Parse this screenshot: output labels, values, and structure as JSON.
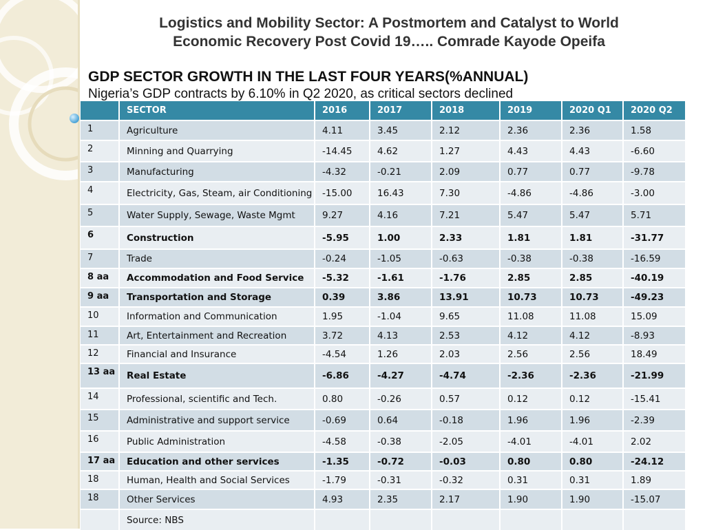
{
  "slide": {
    "title_line1": "Logistics and Mobility Sector: A Postmortem and Catalyst to World",
    "title_line2": "Economic Recovery Post Covid 19….. Comrade Kayode Opeifa",
    "heading": "GDP SECTOR GROWTH IN THE LAST FOUR YEARS(%ANNUAL)",
    "subheading": "Nigeria’s GDP contracts by 6.10% in Q2 2020, as critical sectors declined"
  },
  "table": {
    "headers": [
      "",
      "SECTOR",
      "2016",
      "2017",
      "2018",
      "2019",
      "2020 Q1",
      "2020 Q2"
    ],
    "rows": [
      {
        "num": "1",
        "sector": "Agriculture",
        "v": [
          "4.11",
          "3.45",
          "2.12",
          "2.36",
          "2.36",
          "1.58"
        ],
        "bold": false
      },
      {
        "num": "2",
        "sector": "Minning and Quarrying",
        "v": [
          "-14.45",
          "4.62",
          "1.27",
          "4.43",
          "4.43",
          "-6.60"
        ],
        "bold": false
      },
      {
        "num": "3",
        "sector": "Manufacturing",
        "v": [
          "-4.32",
          "-0.21",
          "2.09",
          "0.77",
          "0.77",
          "-9.78"
        ],
        "bold": false
      },
      {
        "num": "4",
        "sector": "Electricity, Gas, Steam, air Conditioning",
        "v": [
          "-15.00",
          "16.43",
          "7.30",
          "-4.86",
          "-4.86",
          "-3.00"
        ],
        "bold": false
      },
      {
        "num": "5",
        "sector": "Water Supply, Sewage, Waste Mgmt",
        "v": [
          "9.27",
          "4.16",
          "7.21",
          "5.47",
          "5.47",
          "5.71"
        ],
        "bold": false
      },
      {
        "num": "6",
        "sector": "Construction",
        "v": [
          "-5.95",
          "1.00",
          "2.33",
          "1.81",
          "1.81",
          "-31.77"
        ],
        "bold": true
      },
      {
        "num": "7",
        "sector": "Trade",
        "v": [
          "-0.24",
          "-1.05",
          "-0.63",
          "-0.38",
          "-0.38",
          "-16.59"
        ],
        "bold": false
      },
      {
        "num": "8 aa",
        "sector": "Accommodation and Food Service",
        "v": [
          "-5.32",
          "-1.61",
          "-1.76",
          "2.85",
          "2.85",
          "-40.19"
        ],
        "bold": true
      },
      {
        "num": "9 aa",
        "sector": "Transportation and Storage",
        "v": [
          "0.39",
          "3.86",
          "13.91",
          "10.73",
          "10.73",
          "-49.23"
        ],
        "bold": true
      },
      {
        "num": "10",
        "sector": "Information and Communication",
        "v": [
          "1.95",
          "-1.04",
          "9.65",
          "11.08",
          "11.08",
          "15.09"
        ],
        "bold": false
      },
      {
        "num": "11",
        "sector": "Art, Entertainment and Recreation",
        "v": [
          "3.72",
          "4.13",
          "2.53",
          "4.12",
          "4.12",
          "-8.93"
        ],
        "bold": false
      },
      {
        "num": "12",
        "sector": "Financial and Insurance",
        "v": [
          "-4.54",
          "1.26",
          "2.03",
          "2.56",
          "2.56",
          "18.49"
        ],
        "bold": false
      },
      {
        "num": "13 aa",
        "sector": "Real Estate",
        "v": [
          "-6.86",
          "-4.27",
          "-4.74",
          "-2.36",
          "-2.36",
          "-21.99"
        ],
        "bold": true
      },
      {
        "num": "14",
        "sector": "Professional, scientific and Tech.",
        "v": [
          "0.80",
          "-0.26",
          "0.57",
          "0.12",
          "0.12",
          "-15.41"
        ],
        "bold": false
      },
      {
        "num": "15",
        "sector": "Administrative and support service",
        "v": [
          "-0.69",
          "0.64",
          "-0.18",
          "1.96",
          "1.96",
          "-2.39"
        ],
        "bold": false
      },
      {
        "num": "16",
        "sector": "Public Administration",
        "v": [
          "-4.58",
          "-0.38",
          "-2.05",
          "-4.01",
          "-4.01",
          "2.02"
        ],
        "bold": false
      },
      {
        "num": "17 aa",
        "sector": "Education and other services",
        "v": [
          "-1.35",
          "-0.72",
          "-0.03",
          "0.80",
          "0.80",
          "-24.12"
        ],
        "bold": true
      },
      {
        "num": "18",
        "sector": "Human, Health and Social Services",
        "v": [
          "-1.79",
          "-0.31",
          "-0.32",
          "0.31",
          "0.31",
          "1.89"
        ],
        "bold": false
      },
      {
        "num": "18",
        "sector": "Other Services",
        "v": [
          "4.93",
          "2.35",
          "2.17",
          "1.90",
          "1.90",
          "-15.07"
        ],
        "bold": false
      },
      {
        "num": "",
        "sector": "Source: NBS",
        "v": [
          "",
          "",
          "",
          "",
          "",
          ""
        ],
        "bold": false
      }
    ]
  }
}
